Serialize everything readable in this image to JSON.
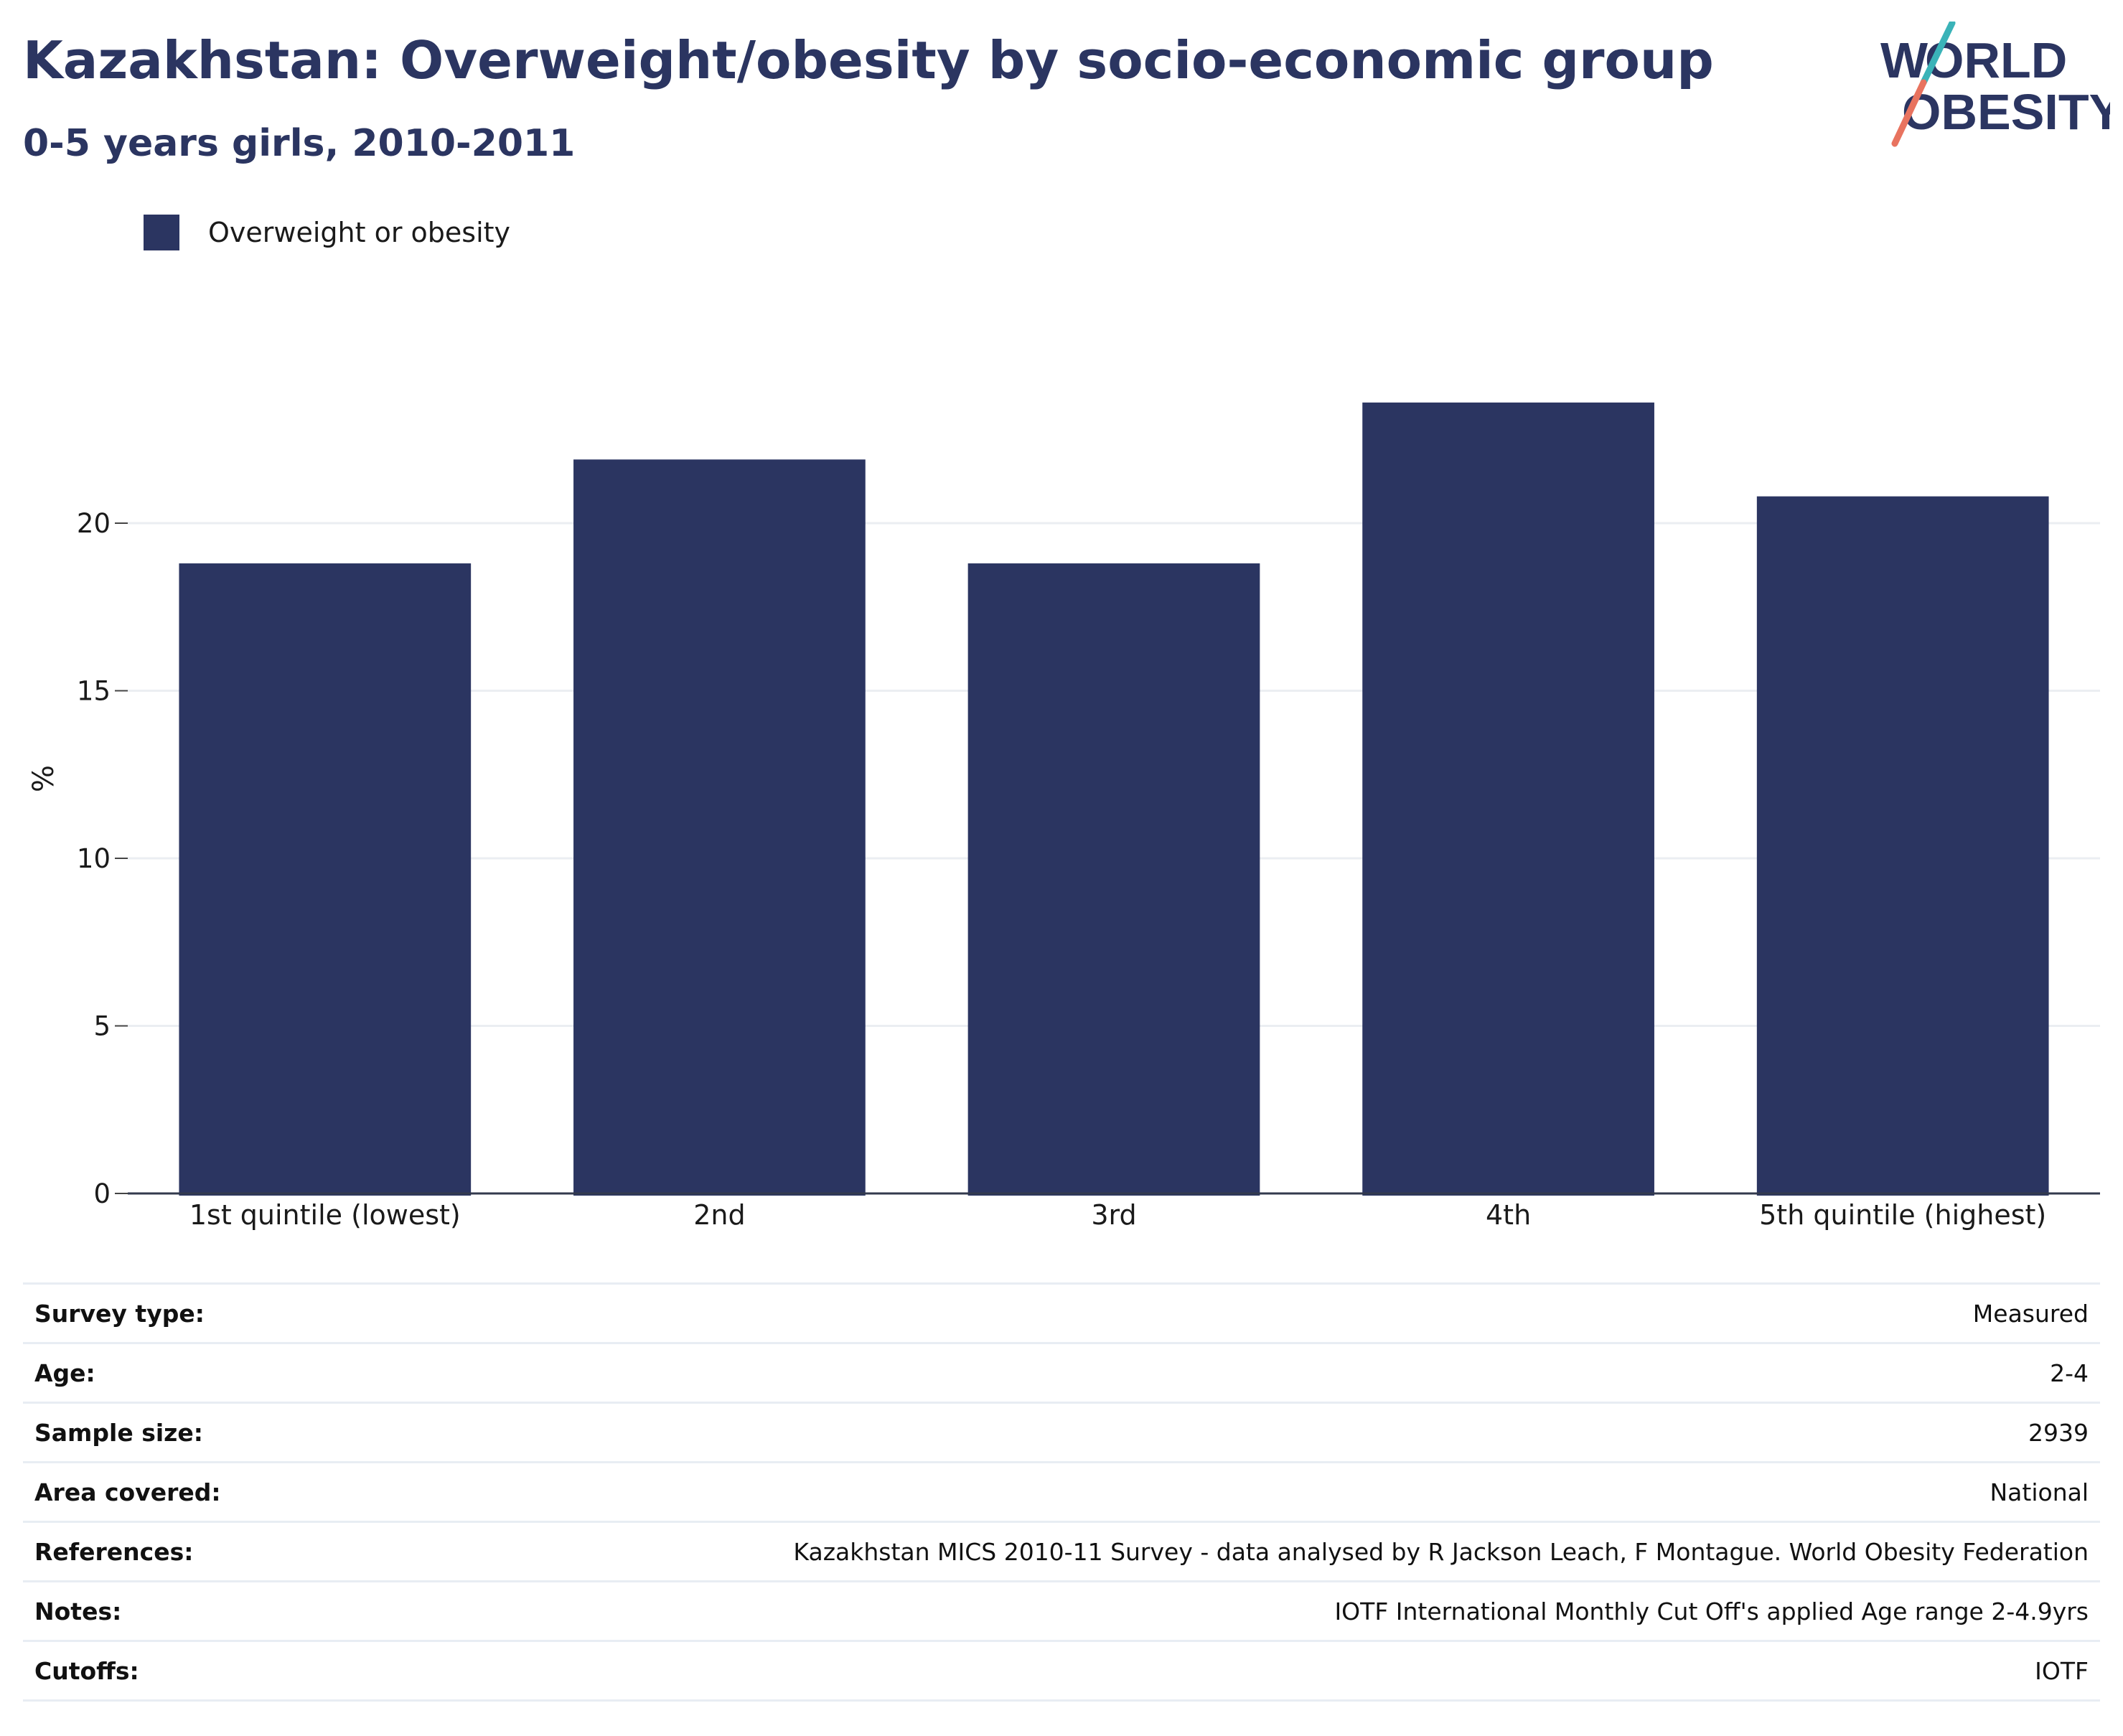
{
  "title": "Kazakhstan: Overweight/obesity by socio-economic group",
  "subtitle": "0-5 years girls, 2010-2011",
  "logo": {
    "line1": "WORLD",
    "line2": "OBESITY"
  },
  "colors": {
    "bar": "#2b3561",
    "title": "#2b3561",
    "logo_slash_top": "#3ab3b8",
    "logo_slash_bottom": "#e8735f"
  },
  "chart_data": {
    "type": "bar",
    "categories": [
      "1st quintile (lowest)",
      "2nd",
      "3rd",
      "4th",
      "5th quintile (highest)"
    ],
    "series": [
      {
        "name": "Overweight or obesity",
        "values": [
          18.8,
          21.9,
          18.8,
          23.6,
          20.8
        ]
      }
    ],
    "ylabel": "%",
    "xlabel": "",
    "ylim": [
      0,
      25
    ],
    "yticks": [
      0,
      5,
      10,
      15,
      20
    ],
    "grid": true,
    "legend": "top-left"
  },
  "details": [
    {
      "label": "Survey type:",
      "value": "Measured"
    },
    {
      "label": "Age:",
      "value": "2-4"
    },
    {
      "label": "Sample size:",
      "value": "2939"
    },
    {
      "label": "Area covered:",
      "value": "National"
    },
    {
      "label": "References:",
      "value": "Kazakhstan MICS 2010-11 Survey - data analysed by R Jackson Leach, F Montague. World Obesity Federation"
    },
    {
      "label": "Notes:",
      "value": "IOTF International Monthly Cut Off's applied Age range 2-4.9yrs"
    },
    {
      "label": "Cutoffs:",
      "value": "IOTF"
    }
  ]
}
